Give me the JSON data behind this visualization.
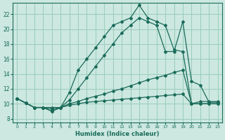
{
  "xlabel": "Humidex (Indice chaleur)",
  "bg_color": "#cce8e0",
  "grid_color": "#99ccbb",
  "line_color": "#1a6b5a",
  "xlim": [
    -0.5,
    23.5
  ],
  "ylim": [
    7.5,
    23.5
  ],
  "xticks": [
    0,
    1,
    2,
    3,
    4,
    5,
    6,
    7,
    8,
    9,
    10,
    11,
    12,
    13,
    14,
    15,
    16,
    17,
    18,
    19,
    20,
    21,
    22,
    23
  ],
  "yticks": [
    8,
    10,
    12,
    14,
    16,
    18,
    20,
    22
  ],
  "curve1_x": [
    0,
    1,
    2,
    3,
    4,
    5,
    6,
    7,
    8,
    9,
    10,
    11,
    12,
    13,
    14,
    15,
    16,
    17,
    18,
    19,
    20,
    21,
    22,
    23
  ],
  "curve1_y": [
    10.7,
    10.1,
    9.5,
    9.5,
    9.5,
    9.5,
    9.8,
    10.0,
    10.2,
    10.3,
    10.4,
    10.5,
    10.6,
    10.7,
    10.8,
    10.9,
    11.0,
    11.1,
    11.2,
    11.3,
    10.0,
    10.0,
    10.0,
    10.0
  ],
  "curve2_x": [
    0,
    1,
    2,
    3,
    4,
    5,
    6,
    7,
    8,
    9,
    10,
    11,
    12,
    13,
    14,
    15,
    16,
    17,
    18,
    19,
    20,
    21,
    22,
    23
  ],
  "curve2_y": [
    10.7,
    10.1,
    9.5,
    9.5,
    9.3,
    9.5,
    10.0,
    10.3,
    10.7,
    11.0,
    11.3,
    11.7,
    12.0,
    12.4,
    12.8,
    13.2,
    13.5,
    13.8,
    14.2,
    14.5,
    10.0,
    10.0,
    10.0,
    10.0
  ],
  "curve3_x": [
    0,
    1,
    2,
    3,
    4,
    5,
    6,
    7,
    8,
    9,
    10,
    11,
    12,
    13,
    14,
    15,
    16,
    17,
    18,
    19,
    20,
    21,
    22,
    23
  ],
  "curve3_y": [
    10.7,
    10.1,
    9.5,
    9.5,
    9.0,
    9.5,
    10.5,
    12.0,
    13.5,
    15.0,
    16.5,
    18.0,
    19.5,
    20.5,
    21.5,
    21.0,
    20.5,
    17.0,
    17.0,
    21.0,
    13.0,
    12.5,
    10.2,
    10.2
  ],
  "curve4_x": [
    0,
    1,
    2,
    3,
    4,
    5,
    6,
    7,
    8,
    9,
    10,
    11,
    12,
    13,
    14,
    15,
    16,
    17,
    18,
    19,
    20,
    21,
    22,
    23
  ],
  "curve4_y": [
    10.7,
    10.1,
    9.5,
    9.5,
    9.0,
    9.5,
    11.5,
    14.5,
    16.0,
    17.5,
    19.0,
    20.5,
    21.0,
    21.5,
    23.2,
    21.5,
    21.0,
    20.5,
    17.2,
    17.0,
    10.0,
    10.3,
    10.3,
    10.3
  ]
}
